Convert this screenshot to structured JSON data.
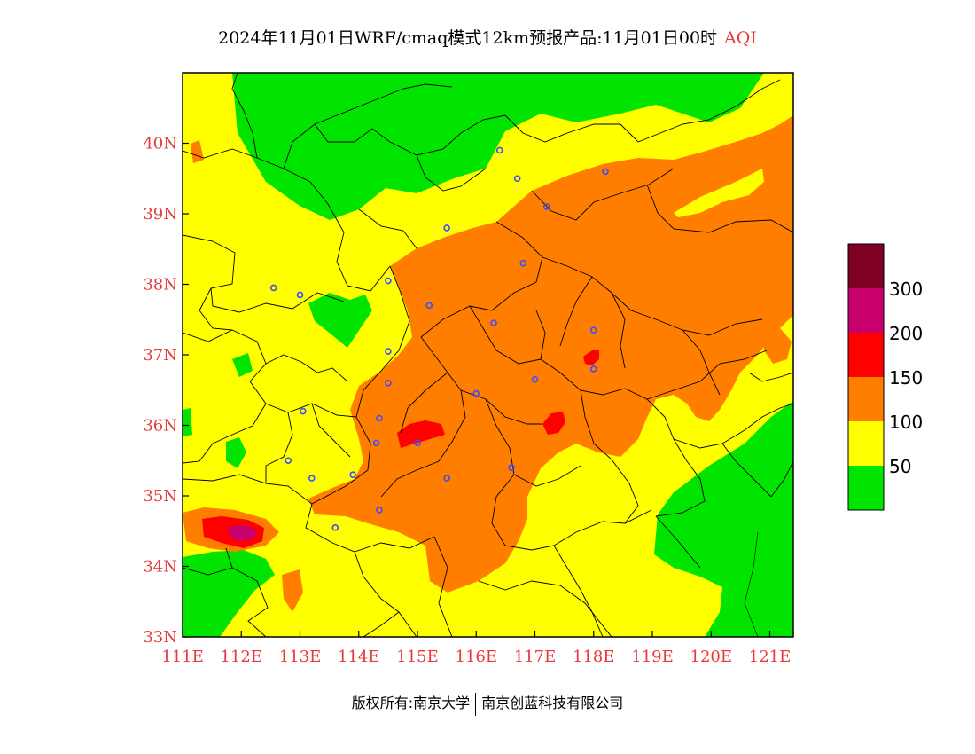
{
  "title": {
    "main": "2024年11月01日WRF/cmaq模式12km预报产品:11月01日00时",
    "variable": "AQI"
  },
  "footer": {
    "left": "版权所有:南京大学",
    "right": "南京创蓝科技有限公司"
  },
  "colors": {
    "good": "#00e400",
    "moderate": "#ffff00",
    "usg": "#ff7e00",
    "unhealthy": "#ff0000",
    "very_unhealthy": "#c8006e",
    "hazardous": "#7e0023",
    "tick_label": "#e83a3a",
    "station": "#3a4dff"
  },
  "map": {
    "lon_range": [
      111,
      121.4
    ],
    "lat_range": [
      33,
      41
    ],
    "x_ticks": [
      "111E",
      "112E",
      "113E",
      "114E",
      "115E",
      "116E",
      "117E",
      "118E",
      "119E",
      "120E",
      "121E"
    ],
    "y_ticks": [
      "33N",
      "34N",
      "35N",
      "36N",
      "37N",
      "38N",
      "39N",
      "40N"
    ]
  },
  "legend": {
    "labels": [
      "50",
      "100",
      "150",
      "200",
      "300"
    ]
  },
  "stations": [
    [
      116.4,
      39.9
    ],
    [
      116.7,
      39.5
    ],
    [
      117.2,
      39.1
    ],
    [
      118.2,
      39.6
    ],
    [
      115.5,
      38.8
    ],
    [
      116.8,
      38.3
    ],
    [
      114.5,
      38.05
    ],
    [
      113.0,
      37.85
    ],
    [
      112.55,
      37.95
    ],
    [
      115.2,
      37.7
    ],
    [
      116.3,
      37.45
    ],
    [
      114.5,
      37.05
    ],
    [
      114.5,
      36.6
    ],
    [
      117.0,
      36.65
    ],
    [
      118.0,
      37.35
    ],
    [
      118.0,
      36.8
    ],
    [
      116.0,
      36.45
    ],
    [
      114.35,
      36.1
    ],
    [
      115.0,
      35.75
    ],
    [
      114.3,
      35.75
    ],
    [
      113.05,
      36.2
    ],
    [
      112.8,
      35.5
    ],
    [
      113.2,
      35.25
    ],
    [
      113.9,
      35.3
    ],
    [
      115.5,
      35.25
    ],
    [
      116.6,
      35.4
    ],
    [
      114.35,
      34.8
    ],
    [
      113.6,
      34.55
    ]
  ]
}
